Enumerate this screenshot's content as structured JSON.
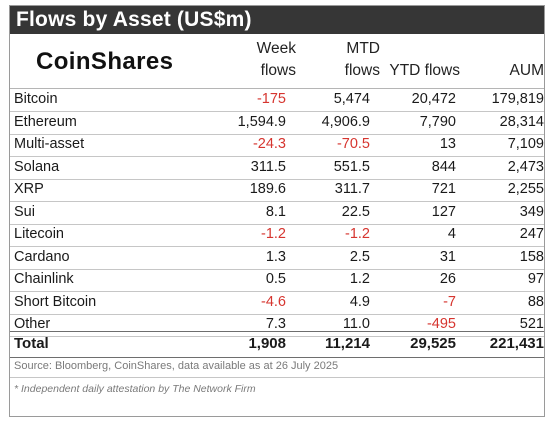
{
  "title": "Flows by Asset (US$m)",
  "logo": "CoinShares",
  "columns": {
    "week": [
      "Week",
      "flows"
    ],
    "mtd": [
      "MTD",
      "flows"
    ],
    "ytd": "YTD flows",
    "aum": "AUM"
  },
  "rows": [
    {
      "asset": "Bitcoin",
      "week": "-175",
      "mtd": "5,474",
      "ytd": "20,472",
      "aum": "179,819"
    },
    {
      "asset": "Ethereum",
      "week": "1,594.9",
      "mtd": "4,906.9",
      "ytd": "7,790",
      "aum": "28,314"
    },
    {
      "asset": "Multi-asset",
      "week": "-24.3",
      "mtd": "-70.5",
      "ytd": "13",
      "aum": "7,109"
    },
    {
      "asset": "Solana",
      "week": "311.5",
      "mtd": "551.5",
      "ytd": "844",
      "aum": "2,473"
    },
    {
      "asset": "XRP",
      "week": "189.6",
      "mtd": "311.7",
      "ytd": "721",
      "aum": "2,255"
    },
    {
      "asset": "Sui",
      "week": "8.1",
      "mtd": "22.5",
      "ytd": "127",
      "aum": "349"
    },
    {
      "asset": "Litecoin",
      "week": "-1.2",
      "mtd": "-1.2",
      "ytd": "4",
      "aum": "247"
    },
    {
      "asset": "Cardano",
      "week": "1.3",
      "mtd": "2.5",
      "ytd": "31",
      "aum": "158"
    },
    {
      "asset": "Chainlink",
      "week": "0.5",
      "mtd": "1.2",
      "ytd": "26",
      "aum": "97"
    },
    {
      "asset": "Short Bitcoin",
      "week": "-4.6",
      "mtd": "4.9",
      "ytd": "-7",
      "aum": "88"
    },
    {
      "asset": "Other",
      "week": "7.3",
      "mtd": "11.0",
      "ytd": "-495",
      "aum": "521"
    }
  ],
  "total": {
    "asset": "Total",
    "week": "1,908",
    "mtd": "11,214",
    "ytd": "29,525",
    "aum": "221,431"
  },
  "source": "Source: Bloomberg, CoinShares, data available as at 26 July 2025",
  "footnote": "* Independent daily attestation by The Network Firm",
  "colors": {
    "header_bg": "#363636",
    "negative": "#d6352f"
  }
}
